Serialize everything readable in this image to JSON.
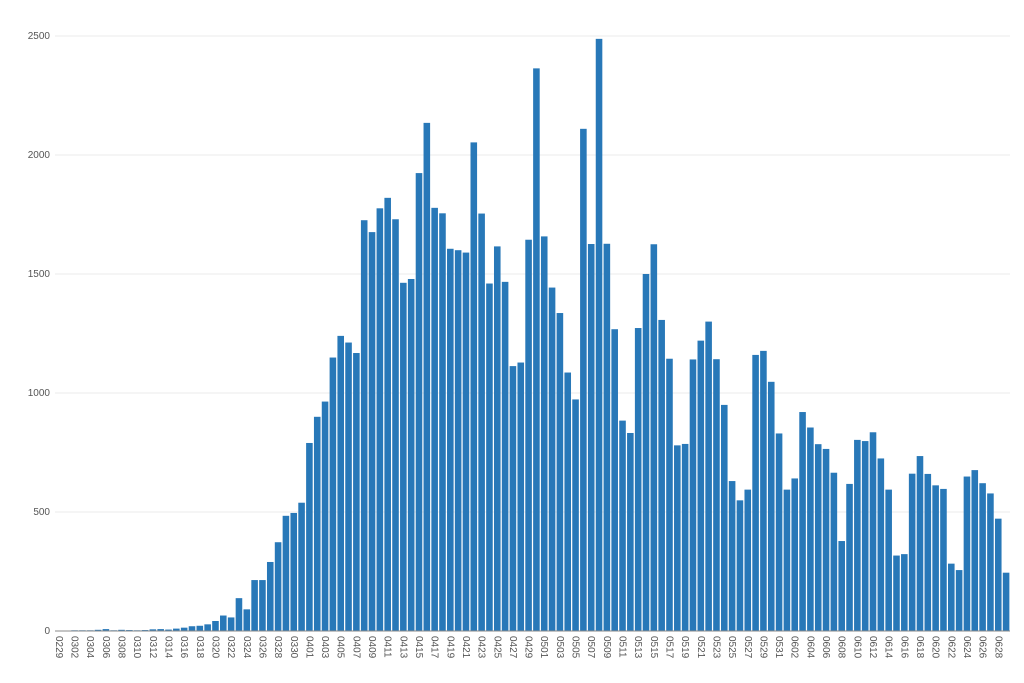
{
  "chart_data": {
    "type": "bar",
    "color": "#2878b8",
    "grid": true,
    "ylim": [
      0,
      2500
    ],
    "yticks": [
      0,
      500,
      1000,
      1500,
      2000,
      2500
    ],
    "categories": [
      "0229",
      null,
      "0302",
      null,
      "0304",
      null,
      "0306",
      null,
      "0308",
      null,
      "0310",
      null,
      "0312",
      null,
      "0314",
      null,
      "0316",
      null,
      "0318",
      null,
      "0320",
      null,
      "0322",
      null,
      "0324",
      null,
      "0326",
      null,
      "0328",
      null,
      "0330",
      null,
      "0401",
      null,
      "0403",
      null,
      "0405",
      null,
      "0407",
      null,
      "0409",
      null,
      "0411",
      null,
      "0413",
      null,
      "0415",
      null,
      "0417",
      null,
      "0419",
      null,
      "0421",
      null,
      "0423",
      null,
      "0425",
      null,
      "0427",
      null,
      "0429",
      null,
      "0501",
      null,
      "0503",
      null,
      "0505",
      null,
      "0507",
      null,
      "0509",
      null,
      "0511",
      null,
      "0513",
      null,
      "0515",
      null,
      "0517",
      null,
      "0519",
      null,
      "0521",
      null,
      "0523",
      null,
      "0525",
      null,
      "0527",
      null,
      "0529",
      null,
      "0531",
      null,
      "0602",
      null,
      "0604",
      null,
      "0606",
      null,
      "0608",
      null,
      "0610",
      null,
      "0612",
      null,
      "0614",
      null,
      "0616",
      null,
      "0618",
      null,
      "0620",
      null,
      "0622",
      null,
      "0624",
      null,
      "0626",
      null,
      "0628",
      null
    ],
    "values": [
      2,
      2,
      3,
      3,
      3,
      5,
      8,
      3,
      5,
      4,
      3,
      4,
      7,
      8,
      6,
      10,
      14,
      20,
      22,
      28,
      42,
      65,
      57,
      138,
      91,
      214,
      214,
      290,
      373,
      484,
      496,
      539,
      790,
      900,
      964,
      1149,
      1240,
      1212,
      1168,
      1726,
      1676,
      1776,
      1820,
      1730,
      1463,
      1479,
      1924,
      2135,
      1778,
      1755,
      1606,
      1600,
      1590,
      2053,
      1754,
      1460,
      1616,
      1467,
      1113,
      1128,
      1644,
      2364,
      1658,
      1443,
      1336,
      1086,
      973,
      2110,
      1626,
      2488,
      1627,
      1268,
      884,
      832,
      1273,
      1500,
      1625,
      1307,
      1144,
      780,
      786,
      1141,
      1220,
      1300,
      1142,
      950,
      630,
      549,
      594,
      1160,
      1177,
      1047,
      830,
      594,
      641,
      920,
      855,
      785,
      765,
      665,
      378,
      618,
      803,
      798,
      835,
      725,
      594,
      317,
      323,
      661,
      735,
      660,
      612,
      597,
      283,
      256,
      649,
      676,
      621,
      578,
      472,
      245
    ]
  }
}
